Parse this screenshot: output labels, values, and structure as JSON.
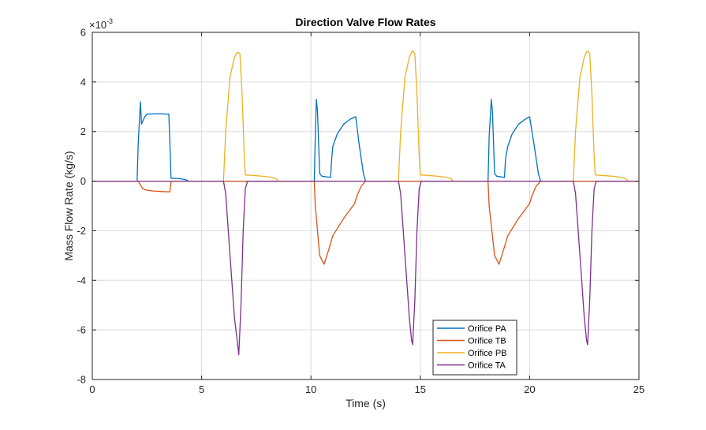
{
  "chart_data": {
    "type": "line",
    "title": "Direction Valve Flow Rates",
    "xlabel": "Time (s)",
    "ylabel": "Mass Flow Rate (kg/s)",
    "exponent_label": "×10",
    "exponent_power": "-3",
    "xlim": [
      0,
      25
    ],
    "ylim": [
      -8,
      6
    ],
    "xticks": [
      0,
      5,
      10,
      15,
      20,
      25
    ],
    "xtick_labels": [
      "0",
      "5",
      "10",
      "15",
      "20",
      "25"
    ],
    "yticks": [
      -8,
      -6,
      -4,
      -2,
      0,
      2,
      4,
      6
    ],
    "ytick_labels": [
      "-8",
      "-6",
      "-4",
      "-2",
      "0",
      "2",
      "4",
      "6"
    ],
    "grid": true,
    "legend_position": "bottom-right",
    "series": [
      {
        "name": "Orifice PA",
        "color": "#0072BD",
        "x": [
          0,
          2.05,
          2.1,
          2.2,
          2.25,
          2.3,
          2.4,
          2.5,
          3.0,
          3.5,
          3.55,
          3.6,
          4.0,
          4.3,
          4.4,
          10.15,
          10.2,
          10.25,
          10.3,
          10.4,
          10.5,
          10.9,
          10.95,
          11.0,
          11.2,
          11.5,
          11.8,
          12.05,
          12.2,
          12.4,
          12.5,
          18.1,
          18.15,
          18.25,
          18.3,
          18.4,
          18.5,
          18.85,
          18.9,
          19.0,
          19.2,
          19.5,
          19.8,
          20.0,
          20.2,
          20.4,
          20.5,
          25
        ],
        "y": [
          0,
          0,
          1.5,
          3.2,
          2.3,
          2.4,
          2.6,
          2.7,
          2.72,
          2.7,
          1.5,
          0.12,
          0.1,
          0.05,
          0,
          0,
          1.8,
          3.3,
          2.8,
          0.3,
          0.2,
          0.15,
          0.9,
          1.4,
          1.9,
          2.3,
          2.5,
          2.6,
          1.5,
          0.3,
          0,
          0,
          1.8,
          3.3,
          2.8,
          0.3,
          0.2,
          0.15,
          0.9,
          1.4,
          1.9,
          2.3,
          2.5,
          2.6,
          1.5,
          0.3,
          0,
          0
        ]
      },
      {
        "name": "Orifice TB",
        "color": "#D95319",
        "x": [
          0,
          2.1,
          2.3,
          2.5,
          2.8,
          3.2,
          3.55,
          3.6,
          10.15,
          10.2,
          10.4,
          10.6,
          10.8,
          11.0,
          11.5,
          12.0,
          12.1,
          12.3,
          12.5,
          18.1,
          18.15,
          18.4,
          18.6,
          18.8,
          19.0,
          19.5,
          20.0,
          20.1,
          20.3,
          20.5,
          25
        ],
        "y": [
          0,
          0,
          -0.3,
          -0.37,
          -0.4,
          -0.42,
          -0.43,
          0,
          0,
          -1.0,
          -3.0,
          -3.35,
          -2.8,
          -2.2,
          -1.5,
          -0.9,
          -0.6,
          -0.2,
          0,
          0,
          -1.0,
          -3.0,
          -3.35,
          -2.8,
          -2.2,
          -1.5,
          -0.9,
          -0.6,
          -0.2,
          0,
          0
        ]
      },
      {
        "name": "Orifice PB",
        "color": "#EDB120",
        "x": [
          0,
          6.0,
          6.1,
          6.3,
          6.5,
          6.6,
          6.65,
          6.75,
          6.85,
          6.95,
          7.0,
          7.5,
          8.0,
          8.4,
          8.5,
          14.0,
          14.1,
          14.3,
          14.5,
          14.6,
          14.65,
          14.75,
          14.85,
          14.95,
          15.0,
          15.5,
          16.0,
          16.4,
          16.5,
          22.0,
          22.1,
          22.3,
          22.5,
          22.6,
          22.65,
          22.75,
          22.85,
          22.95,
          23.0,
          23.5,
          24.0,
          24.4,
          24.5,
          25
        ],
        "y": [
          0,
          0,
          2.0,
          4.2,
          5.0,
          5.15,
          5.2,
          5.15,
          3.5,
          1.0,
          0.25,
          0.22,
          0.18,
          0.1,
          0,
          0,
          2.0,
          4.2,
          5.0,
          5.2,
          5.25,
          5.15,
          3.5,
          1.0,
          0.25,
          0.22,
          0.18,
          0.1,
          0,
          0,
          2.0,
          4.2,
          5.0,
          5.2,
          5.25,
          5.15,
          3.5,
          1.0,
          0.25,
          0.22,
          0.18,
          0.1,
          0,
          0
        ]
      },
      {
        "name": "Orifice TA",
        "color": "#7E2F8E",
        "x": [
          0,
          6.0,
          6.1,
          6.3,
          6.5,
          6.65,
          6.7,
          6.8,
          6.9,
          7.0,
          7.1,
          14.0,
          14.1,
          14.3,
          14.5,
          14.6,
          14.65,
          14.75,
          14.85,
          14.95,
          15.05,
          22.0,
          22.1,
          22.3,
          22.5,
          22.6,
          22.65,
          22.75,
          22.85,
          22.95,
          23.05,
          25
        ],
        "y": [
          0,
          0,
          -0.5,
          -3.0,
          -5.5,
          -6.6,
          -7.0,
          -5.0,
          -2.0,
          -0.3,
          0,
          0,
          -0.5,
          -3.0,
          -5.5,
          -6.4,
          -6.6,
          -4.8,
          -2.0,
          -0.3,
          0,
          0,
          -0.5,
          -3.0,
          -5.5,
          -6.4,
          -6.6,
          -4.8,
          -2.0,
          -0.3,
          0,
          0
        ]
      }
    ]
  }
}
